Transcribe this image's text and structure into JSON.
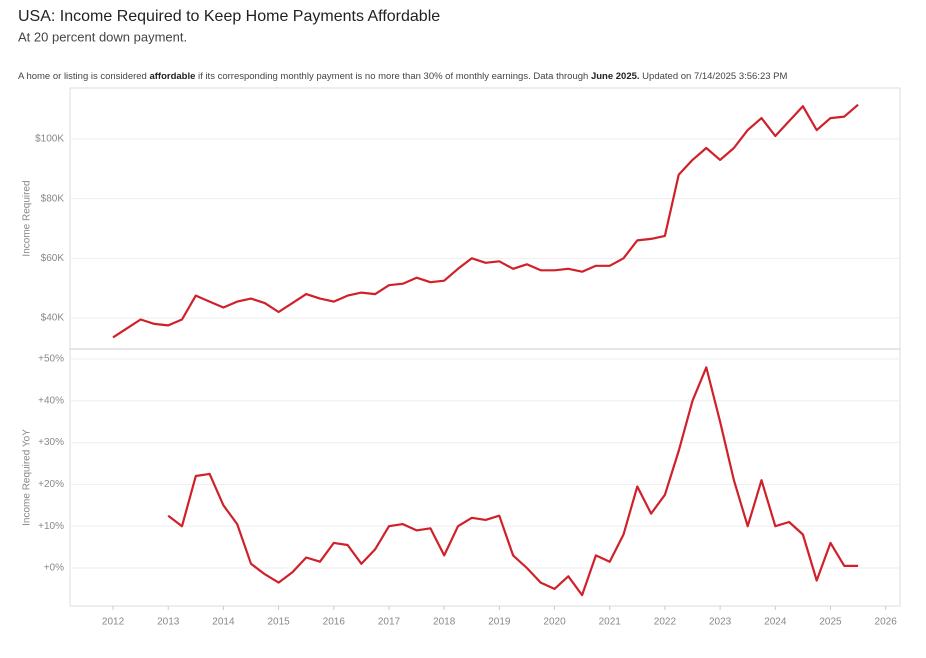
{
  "chart_data": [
    {
      "type": "line",
      "title": "USA: Income Required to Keep Home Payments Affordable",
      "subtitle": "At 20 percent down payment.",
      "note": [
        "A home or listing is considered ",
        "affordable",
        " if its corresponding monthly payment is no more than 30% of monthly earnings. Data through ",
        "June 2025.",
        " Updated on 7/14/2025 3:56:23 PM"
      ],
      "y_label": "Income Required",
      "x": [
        2012,
        2012.25,
        2012.5,
        2012.75,
        2013,
        2013.25,
        2013.5,
        2013.75,
        2014,
        2014.25,
        2014.5,
        2014.75,
        2015,
        2015.25,
        2015.5,
        2015.75,
        2016,
        2016.25,
        2016.5,
        2016.75,
        2017,
        2017.25,
        2017.5,
        2017.75,
        2018,
        2018.25,
        2018.5,
        2018.75,
        2019,
        2019.25,
        2019.5,
        2019.75,
        2020,
        2020.25,
        2020.5,
        2020.75,
        2021,
        2021.25,
        2021.5,
        2021.75,
        2022,
        2022.25,
        2022.5,
        2022.75,
        2023,
        2023.25,
        2023.5,
        2023.75,
        2024,
        2024.25,
        2024.5,
        2024.75,
        2025,
        2025.25,
        2025.5
      ],
      "series": [
        {
          "name": "Income Required",
          "color": "#d0202a",
          "values": [
            33500,
            36500,
            39500,
            38000,
            37500,
            39500,
            47500,
            45500,
            43500,
            45500,
            46500,
            45000,
            42000,
            45000,
            48000,
            46500,
            45500,
            47500,
            48500,
            48000,
            51000,
            51500,
            53500,
            52000,
            52500,
            56500,
            60000,
            58500,
            59000,
            56500,
            58000,
            56000,
            56000,
            56500,
            55500,
            57500,
            57500,
            60000,
            66000,
            66500,
            67500,
            88000,
            93000,
            97000,
            93000,
            97000,
            103000,
            107000,
            101000,
            106000,
            111000,
            103000,
            107000,
            107500,
            111500
          ]
        }
      ],
      "xlim": [
        2011.22,
        2026.26
      ],
      "ylim": [
        29600,
        117100
      ],
      "yticks": [
        {
          "value": 40000,
          "label": "$40K"
        },
        {
          "value": 60000,
          "label": "$60K"
        },
        {
          "value": 80000,
          "label": "$80K"
        },
        {
          "value": 100000,
          "label": "$100K"
        }
      ],
      "grid": true
    },
    {
      "type": "line",
      "y_label": "Income Required YoY",
      "x": [
        2013,
        2013.25,
        2013.5,
        2013.75,
        2014,
        2014.25,
        2014.5,
        2014.75,
        2015,
        2015.25,
        2015.5,
        2015.75,
        2016,
        2016.25,
        2016.5,
        2016.75,
        2017,
        2017.25,
        2017.5,
        2017.75,
        2018,
        2018.25,
        2018.5,
        2018.75,
        2019,
        2019.25,
        2019.5,
        2019.75,
        2020,
        2020.25,
        2020.5,
        2020.75,
        2021,
        2021.25,
        2021.5,
        2021.75,
        2022,
        2022.25,
        2022.5,
        2022.75,
        2023,
        2023.25,
        2023.5,
        2023.75,
        2024,
        2024.25,
        2024.5,
        2024.75,
        2025,
        2025.25,
        2025.5
      ],
      "series": [
        {
          "name": "Income Required YoY",
          "color": "#d0202a",
          "values": [
            12.5,
            10,
            22,
            22.5,
            15,
            10.5,
            1,
            -1.5,
            -3.5,
            -1,
            2.5,
            1.5,
            6,
            5.5,
            1,
            4.5,
            10,
            10.5,
            9,
            9.5,
            3,
            10,
            12,
            11.5,
            12.5,
            3,
            0,
            -3.5,
            -5,
            -2,
            -6.5,
            3,
            1.5,
            8,
            19.5,
            13,
            17.5,
            28,
            40,
            48,
            35,
            21,
            10,
            21,
            10,
            11,
            8,
            -3,
            6,
            0.5,
            0.5
          ]
        }
      ],
      "xlim": [
        2011.22,
        2026.26
      ],
      "xticks": [
        2012,
        2013,
        2014,
        2015,
        2016,
        2017,
        2018,
        2019,
        2020,
        2021,
        2022,
        2023,
        2024,
        2025,
        2026
      ],
      "ylim": [
        -9.1,
        52.4
      ],
      "yticks": [
        {
          "value": 0,
          "label": "+0%"
        },
        {
          "value": 10,
          "label": "+10%"
        },
        {
          "value": 20,
          "label": "+20%"
        },
        {
          "value": 30,
          "label": "+30%"
        },
        {
          "value": 40,
          "label": "+40%"
        },
        {
          "value": 50,
          "label": "+50%"
        }
      ],
      "grid": true
    }
  ]
}
